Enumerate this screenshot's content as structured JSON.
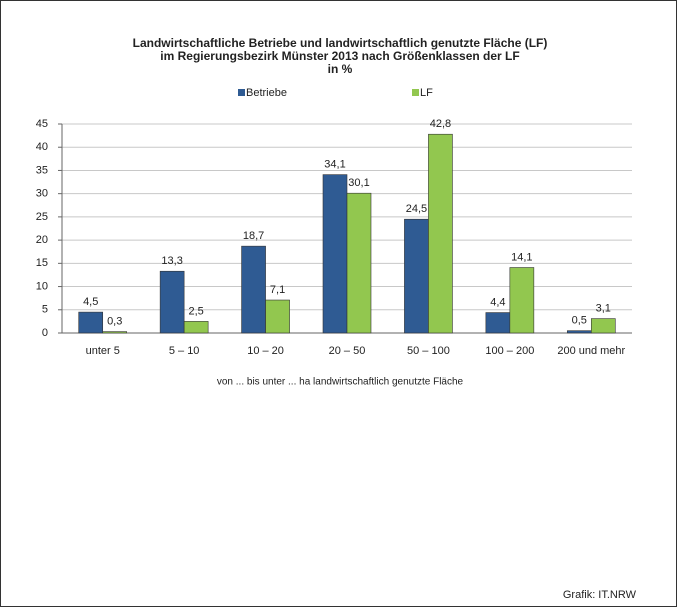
{
  "chart_data": {
    "type": "bar",
    "title": [
      "Landwirtschaftliche Betriebe und landwirtschaftlich genutzte Fläche (LF)",
      "im Regierungsbezirk Münster 2013 nach Größenklassen der LF",
      "in %"
    ],
    "categories": [
      "unter 5",
      "5 – 10",
      "10 – 20",
      "20 – 50",
      "50 – 100",
      "100 – 200",
      "200 und mehr"
    ],
    "series": [
      {
        "name": "Betriebe",
        "color": "#2f5b93",
        "values": [
          4.5,
          13.3,
          18.7,
          34.1,
          24.5,
          4.4,
          0.5
        ],
        "value_labels": [
          "4,5",
          "13,3",
          "18,7",
          "34,1",
          "24,5",
          "4,4",
          "0,5"
        ]
      },
      {
        "name": "LF",
        "color": "#92c74f",
        "values": [
          0.3,
          2.5,
          7.1,
          30.1,
          42.8,
          14.1,
          3.1
        ],
        "value_labels": [
          "0,3",
          "2,5",
          "7,1",
          "30,1",
          "42,8",
          "14,1",
          "3,1"
        ]
      }
    ],
    "ylim": [
      0,
      45
    ],
    "yticks": [
      0,
      5,
      10,
      15,
      20,
      25,
      30,
      35,
      40,
      45
    ],
    "grid": true,
    "xlabel": "von ... bis unter ... ha landwirtschaftlich genutzte Fläche",
    "source": "Grafik: IT.NRW"
  }
}
